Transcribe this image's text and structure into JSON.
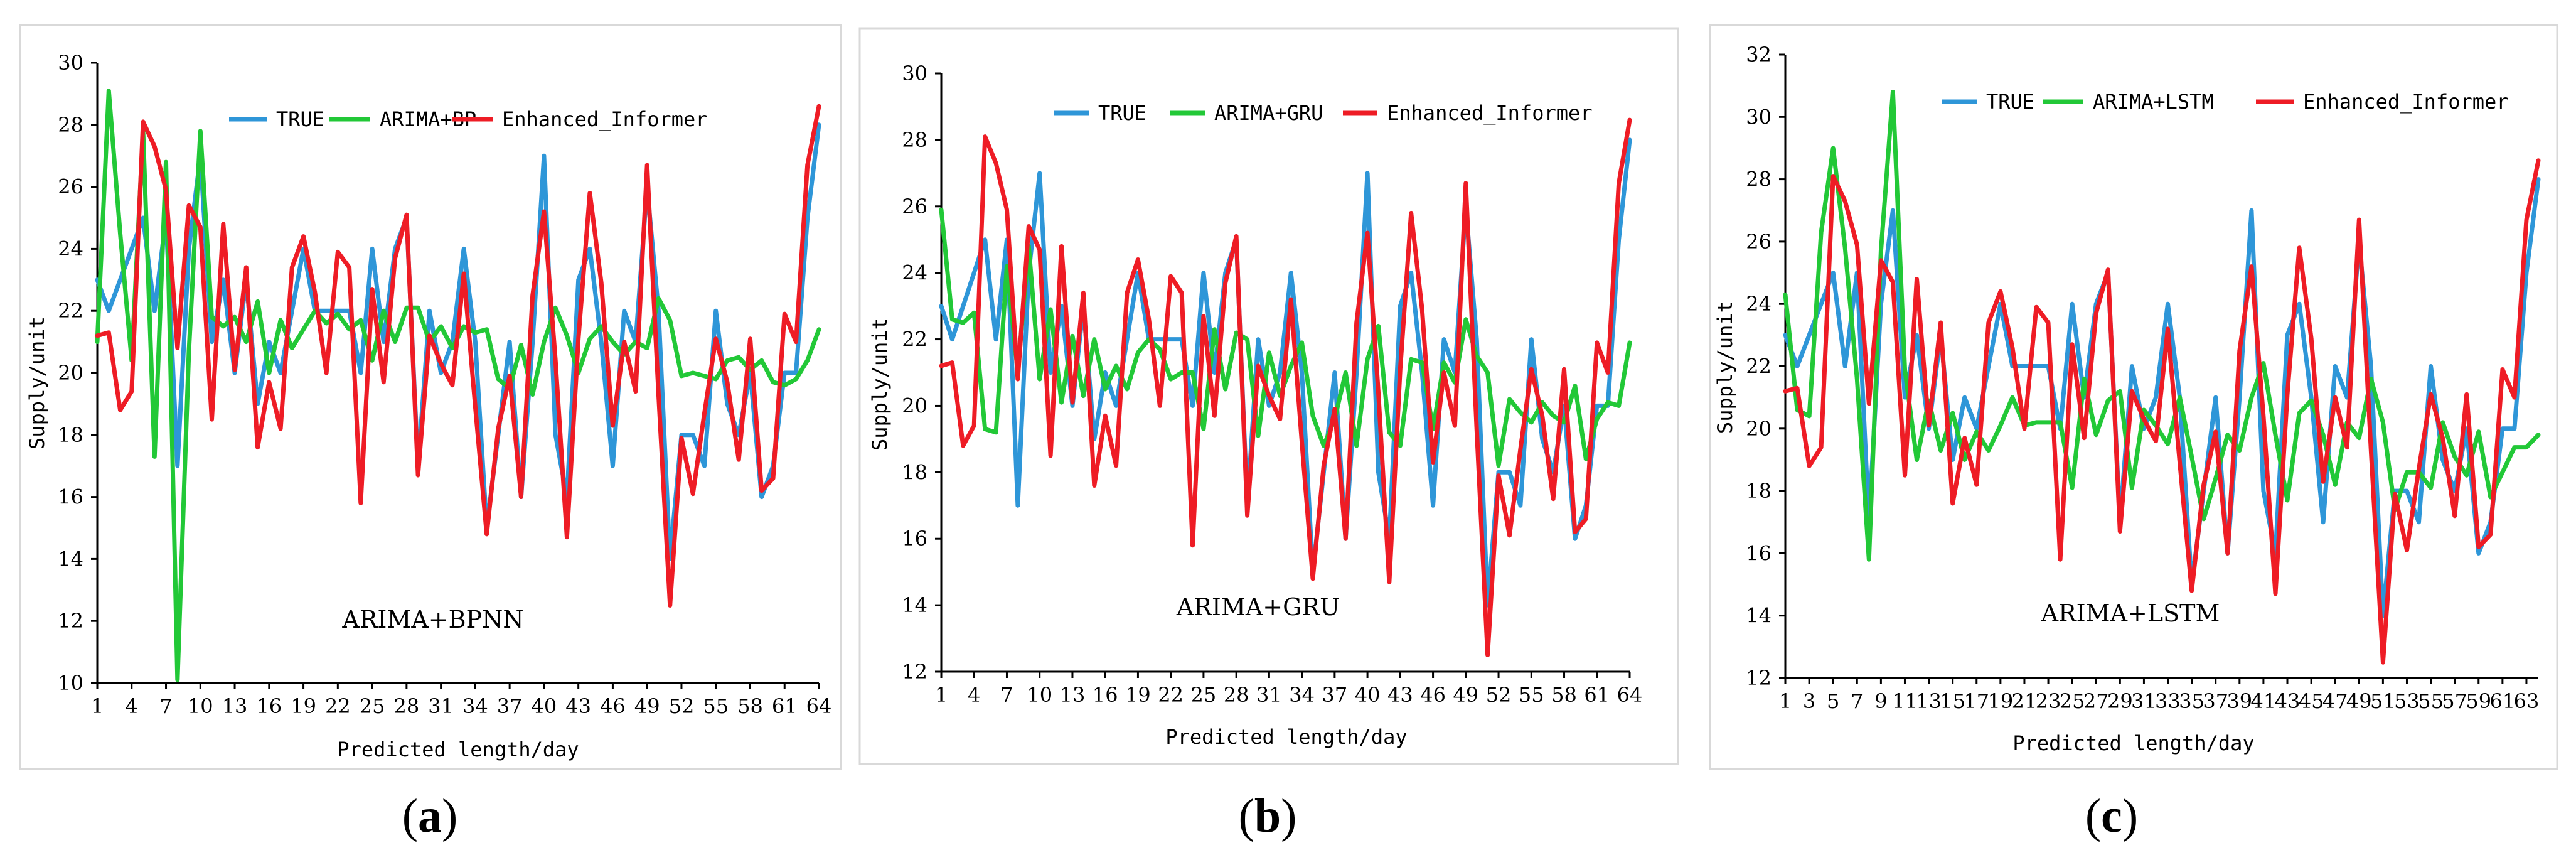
{
  "figure": {
    "colors": {
      "TRUE": "#2e96d8",
      "ARIMA": "#22c837",
      "Informer": "#ee1c25"
    }
  },
  "chart_data": [
    {
      "type": "line",
      "panel": "a",
      "caption": {
        "open": "(",
        "letter": "a",
        "close": ")"
      },
      "inner_title": "ARIMA+BPNN",
      "xlabel": "Predicted length/day",
      "ylabel": "Supply/unit",
      "ylim": [
        10,
        30
      ],
      "yticks": [
        "10",
        "12",
        "14",
        "16",
        "18",
        "20",
        "22",
        "24",
        "26",
        "28",
        "30"
      ],
      "xticks": [
        "1",
        "4",
        "7",
        "10",
        "13",
        "16",
        "19",
        "22",
        "25",
        "28",
        "31",
        "34",
        "37",
        "40",
        "43",
        "46",
        "49",
        "52",
        "55",
        "58",
        "61",
        "64"
      ],
      "legend_position": "top",
      "series": [
        {
          "name": "TRUE",
          "values": [
            23,
            22,
            23,
            24,
            25,
            22,
            25,
            17,
            24,
            27,
            21,
            23,
            20,
            23,
            19,
            21,
            20,
            22,
            24,
            22,
            22,
            22,
            22,
            20,
            24,
            21,
            24,
            25,
            17,
            22,
            20,
            21,
            24,
            21,
            15,
            18,
            21,
            16,
            21,
            27,
            18,
            16,
            23,
            24,
            21,
            17,
            22,
            21,
            26,
            22,
            14,
            18,
            18,
            17,
            22,
            19,
            18,
            20,
            16,
            17,
            20,
            20,
            25,
            28
          ]
        },
        {
          "name": "ARIMA+BP",
          "values": [
            21,
            29.1,
            24.5,
            20.4,
            27.8,
            17.3,
            26.8,
            10.1,
            20.7,
            27.8,
            21.8,
            21.5,
            21.8,
            21,
            22.3,
            20,
            21.7,
            20.8,
            21.4,
            22,
            21.6,
            21.9,
            21.4,
            21.7,
            20.4,
            22,
            21,
            22.1,
            22.1,
            21,
            21.5,
            20.8,
            21.5,
            21.3,
            21.4,
            19.8,
            19.5,
            20.9,
            19.3,
            21,
            22.1,
            21.2,
            20,
            21.1,
            21.5,
            21,
            20.6,
            21,
            20.8,
            22.4,
            21.7,
            19.9,
            20,
            19.9,
            19.8,
            20.4,
            20.5,
            20.1,
            20.4,
            19.7,
            19.6,
            19.8,
            20.4,
            21.4
          ]
        },
        {
          "name": "Enhanced_Informer",
          "values": [
            21.2,
            21.3,
            18.8,
            19.4,
            28.1,
            27.3,
            25.9,
            20.8,
            25.4,
            24.7,
            18.5,
            24.8,
            20.1,
            23.4,
            17.6,
            19.7,
            18.2,
            23.4,
            24.4,
            22.6,
            20,
            23.9,
            23.4,
            15.8,
            22.7,
            19.7,
            23.7,
            25.1,
            16.7,
            21.2,
            20.3,
            19.6,
            23.2,
            18.9,
            14.8,
            18.2,
            19.9,
            16,
            22.5,
            25.2,
            20.4,
            14.7,
            21.1,
            25.8,
            22.9,
            18.3,
            21,
            19.4,
            26.7,
            19.3,
            12.5,
            17.9,
            16.1,
            18.7,
            21.1,
            19.7,
            17.2,
            21.1,
            16.2,
            16.6,
            21.9,
            21,
            26.7,
            28.6
          ]
        }
      ]
    },
    {
      "type": "line",
      "panel": "b",
      "caption": {
        "open": "(",
        "letter": "b",
        "close": ")"
      },
      "inner_title": "ARIMA+GRU",
      "xlabel": "Predicted length/day",
      "ylabel": "Supply/unit",
      "ylim": [
        12,
        30
      ],
      "yticks": [
        "12",
        "14",
        "16",
        "18",
        "20",
        "22",
        "24",
        "26",
        "28",
        "30"
      ],
      "xticks": [
        "1",
        "4",
        "7",
        "10",
        "13",
        "16",
        "19",
        "22",
        "25",
        "28",
        "31",
        "34",
        "37",
        "40",
        "43",
        "46",
        "49",
        "52",
        "55",
        "58",
        "61",
        "64"
      ],
      "legend_position": "top",
      "series": [
        {
          "name": "TRUE",
          "values": [
            23,
            22,
            23,
            24,
            25,
            22,
            25,
            17,
            24,
            27,
            21,
            23,
            20,
            23,
            19,
            21,
            20,
            22,
            24,
            22,
            22,
            22,
            22,
            20,
            24,
            21,
            24,
            25,
            17,
            22,
            20,
            21,
            24,
            21,
            15,
            18,
            21,
            16,
            21,
            27,
            18,
            16,
            23,
            24,
            21,
            17,
            22,
            21,
            26,
            22,
            14,
            18,
            18,
            17,
            22,
            19,
            18,
            20,
            16,
            17,
            20,
            20,
            25,
            28
          ]
        },
        {
          "name": "ARIMA+GRU",
          "values": [
            25.9,
            22.6,
            22.5,
            22.8,
            19.3,
            19.2,
            24.2,
            21,
            24.8,
            20.8,
            22.9,
            20.1,
            22.1,
            20.3,
            22,
            20.5,
            21.2,
            20.5,
            21.6,
            22,
            21.7,
            20.8,
            21,
            21,
            19.3,
            22.3,
            20.5,
            22.2,
            22,
            19.1,
            21.6,
            20.3,
            21.2,
            21.9,
            19.7,
            18.8,
            19.6,
            21,
            18.8,
            21.4,
            22.4,
            19.2,
            18.8,
            21.4,
            21.3,
            19.3,
            21.3,
            20.7,
            22.6,
            21.5,
            21,
            18.2,
            20.2,
            19.8,
            19.5,
            20.1,
            19.7,
            19.5,
            20.6,
            18.4,
            19.6,
            20.1,
            20,
            21.9
          ]
        },
        {
          "name": "Enhanced_Informer",
          "values": [
            21.2,
            21.3,
            18.8,
            19.4,
            28.1,
            27.3,
            25.9,
            20.8,
            25.4,
            24.7,
            18.5,
            24.8,
            20.1,
            23.4,
            17.6,
            19.7,
            18.2,
            23.4,
            24.4,
            22.6,
            20,
            23.9,
            23.4,
            15.8,
            22.7,
            19.7,
            23.7,
            25.1,
            16.7,
            21.2,
            20.3,
            19.6,
            23.2,
            18.9,
            14.8,
            18.2,
            19.9,
            16,
            22.5,
            25.2,
            20.4,
            14.7,
            21.1,
            25.8,
            22.9,
            18.3,
            21,
            19.4,
            26.7,
            19.3,
            12.5,
            17.9,
            16.1,
            18.7,
            21.1,
            19.7,
            17.2,
            21.1,
            16.2,
            16.6,
            21.9,
            21,
            26.7,
            28.6
          ]
        }
      ]
    },
    {
      "type": "line",
      "panel": "c",
      "caption": {
        "open": "(",
        "letter": "c",
        "close": ")"
      },
      "inner_title": "ARIMA+LSTM",
      "xlabel": "Predicted length/day",
      "ylabel": "Supply/unit",
      "ylim": [
        12,
        32
      ],
      "yticks": [
        "12",
        "14",
        "16",
        "18",
        "20",
        "22",
        "24",
        "26",
        "28",
        "30",
        "32"
      ],
      "xticks": [
        "1",
        "3",
        "5",
        "7",
        "9",
        "11",
        "13",
        "15",
        "17",
        "19",
        "21",
        "23",
        "25",
        "27",
        "29",
        "31",
        "33",
        "35",
        "37",
        "39",
        "41",
        "43",
        "45",
        "47",
        "49",
        "51",
        "53",
        "55",
        "57",
        "59",
        "61",
        "63"
      ],
      "legend_position": "top",
      "series": [
        {
          "name": "TRUE",
          "values": [
            23,
            22,
            23,
            24,
            25,
            22,
            25,
            17,
            24,
            27,
            21,
            23,
            20,
            23,
            19,
            21,
            20,
            22,
            24,
            22,
            22,
            22,
            22,
            20,
            24,
            21,
            24,
            25,
            17,
            22,
            20,
            21,
            24,
            21,
            15,
            18,
            21,
            16,
            21,
            27,
            18,
            16,
            23,
            24,
            21,
            17,
            22,
            21,
            26,
            22,
            14,
            18,
            18,
            17,
            22,
            19,
            18,
            20,
            16,
            17,
            20,
            20,
            25,
            28
          ]
        },
        {
          "name": "ARIMA+LSTM",
          "values": [
            24.3,
            20.6,
            20.4,
            26.3,
            29,
            25.8,
            21.6,
            15.8,
            25.7,
            30.8,
            21.9,
            19,
            20.9,
            19.3,
            20.5,
            19,
            19.9,
            19.3,
            20.1,
            21,
            20.1,
            20.2,
            20.2,
            20.2,
            18.1,
            21.6,
            19.8,
            20.9,
            21.2,
            18.1,
            20.6,
            20.1,
            19.5,
            21,
            19.1,
            17.1,
            18.4,
            19.8,
            19.3,
            21,
            22.1,
            19.8,
            17.7,
            20.5,
            20.9,
            19.8,
            18.2,
            20.2,
            19.7,
            21.6,
            20.2,
            17.4,
            18.6,
            18.6,
            18.1,
            20.2,
            19.1,
            18.5,
            19.9,
            17.8,
            18.6,
            19.4,
            19.4,
            19.8
          ]
        },
        {
          "name": "Enhanced_Informer",
          "values": [
            21.2,
            21.3,
            18.8,
            19.4,
            28.1,
            27.3,
            25.9,
            20.8,
            25.4,
            24.7,
            18.5,
            24.8,
            20.1,
            23.4,
            17.6,
            19.7,
            18.2,
            23.4,
            24.4,
            22.6,
            20,
            23.9,
            23.4,
            15.8,
            22.7,
            19.7,
            23.7,
            25.1,
            16.7,
            21.2,
            20.3,
            19.6,
            23.2,
            18.9,
            14.8,
            18.2,
            19.9,
            16,
            22.5,
            25.2,
            20.4,
            14.7,
            21.1,
            25.8,
            22.9,
            18.3,
            21,
            19.4,
            26.7,
            19.3,
            12.5,
            17.9,
            16.1,
            18.7,
            21.1,
            19.7,
            17.2,
            21.1,
            16.2,
            16.6,
            21.9,
            21,
            26.7,
            28.6
          ]
        }
      ]
    }
  ]
}
